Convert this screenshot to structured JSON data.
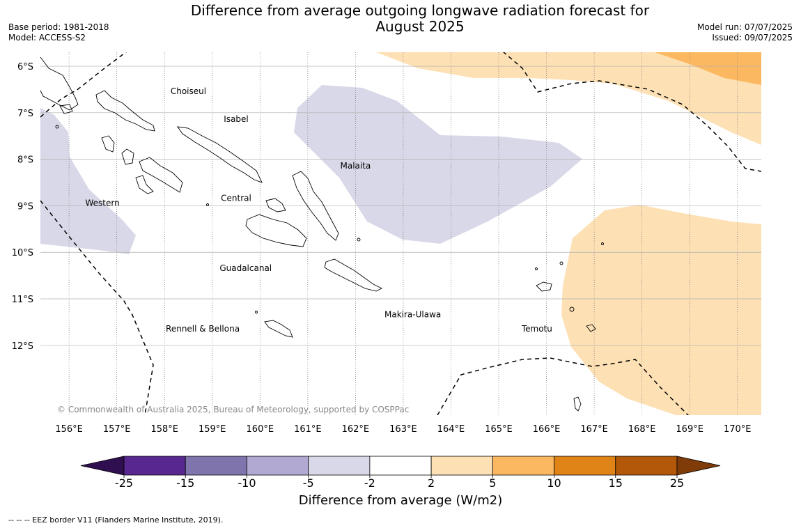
{
  "header": {
    "title_line1": "Difference from average outgoing longwave radiation forecast for",
    "title_line2": "August 2025",
    "base_period": "Base period: 1981-2018",
    "model": "Model: ACCESS-S2",
    "model_run": "Model run: 07/07/2025",
    "issued": "Issued: 09/07/2025"
  },
  "map": {
    "lon_range": [
      155.4,
      170.5
    ],
    "lat_range": [
      -13.5,
      -5.7
    ],
    "lat_ticks": [
      "6°S",
      "7°S",
      "8°S",
      "9°S",
      "10°S",
      "11°S",
      "12°S"
    ],
    "lon_ticks": [
      "156°E",
      "157°E",
      "158°E",
      "159°E",
      "160°E",
      "161°E",
      "162°E",
      "163°E",
      "164°E",
      "165°E",
      "166°E",
      "167°E",
      "168°E",
      "169°E",
      "170°E"
    ],
    "region_labels": [
      {
        "name": "Choiseul",
        "lon": 158.5,
        "lat": -6.6
      },
      {
        "name": "Isabel",
        "lon": 159.5,
        "lat": -7.2
      },
      {
        "name": "Malaita",
        "lon": 162.0,
        "lat": -8.2
      },
      {
        "name": "Western",
        "lon": 156.7,
        "lat": -9.0
      },
      {
        "name": "Central",
        "lon": 159.5,
        "lat": -8.9
      },
      {
        "name": "Guadalcanal",
        "lon": 159.7,
        "lat": -10.4
      },
      {
        "name": "Makira-Ulawa",
        "lon": 163.2,
        "lat": -11.4
      },
      {
        "name": "Rennell & Bellona",
        "lon": 158.8,
        "lat": -11.7
      },
      {
        "name": "Temotu",
        "lon": 165.8,
        "lat": -11.7
      }
    ],
    "copyright": "© Commonwealth of Australia 2025, Bureau of Meteorology, supported by COSPPac",
    "colors": {
      "light_purple": "#d8d8e8",
      "light_orange": "#fde0b4",
      "mid_orange": "#fcb860",
      "grid": "#b0b0b0",
      "coast": "#000000"
    }
  },
  "colorbar": {
    "label": "Difference from average (W/m2)",
    "ticks": [
      "-25",
      "-15",
      "-10",
      "-5",
      "-2",
      "2",
      "5",
      "10",
      "15",
      "25"
    ],
    "colors": [
      "#2f0f4f",
      "#58278f",
      "#8074ad",
      "#b1a9d1",
      "#d8d8e8",
      "#ffffff",
      "#fde0b4",
      "#fcb860",
      "#e08418",
      "#b25808",
      "#7f3b08"
    ]
  },
  "footer": {
    "eez_note": "--  --  -- EEZ border V11 (Flanders Marine Institute, 2019)."
  }
}
